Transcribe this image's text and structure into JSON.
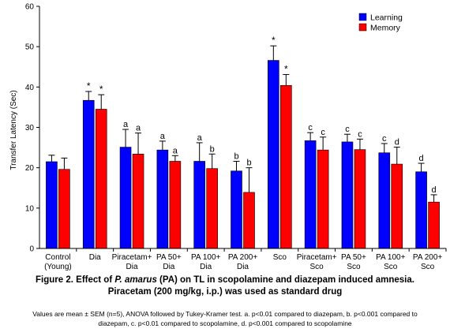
{
  "chart_data": {
    "type": "bar",
    "ylabel": "Transfer Latency (Sec)",
    "xlabel": "",
    "ylim": [
      0,
      60
    ],
    "yticks": [
      0,
      10,
      20,
      30,
      40,
      50,
      60
    ],
    "legend_position": "top-right",
    "categories": [
      [
        "Control",
        "(Young)"
      ],
      [
        "Dia"
      ],
      [
        "Piracetam+",
        "Dia"
      ],
      [
        "PA 50+",
        "Dia"
      ],
      [
        "PA 100+",
        "Dia"
      ],
      [
        "PA 200+",
        "Dia"
      ],
      [
        "Sco"
      ],
      [
        "Piracetam+",
        "Sco"
      ],
      [
        "PA 50+",
        "Sco"
      ],
      [
        "PA 100+",
        "Sco"
      ],
      [
        "PA 200+",
        "Sco"
      ]
    ],
    "series": [
      {
        "name": "Learning",
        "color": "#0000ff",
        "values": [
          21.5,
          36.7,
          25.1,
          24.4,
          21.6,
          19.2,
          46.6,
          26.7,
          26.4,
          23.7,
          19.0
        ],
        "errors": [
          1.6,
          2.2,
          4.4,
          2.2,
          4.6,
          2.4,
          3.6,
          2.0,
          1.9,
          2.3,
          2.1
        ],
        "annotations": [
          "",
          "*",
          "a",
          "a",
          "a",
          "b",
          "*",
          "c",
          "c",
          "c",
          "d"
        ]
      },
      {
        "name": "Memory",
        "color": "#ff0000",
        "values": [
          19.6,
          34.5,
          23.4,
          21.6,
          19.8,
          13.9,
          40.4,
          24.4,
          24.5,
          20.9,
          11.5
        ],
        "errors": [
          2.8,
          3.6,
          5.2,
          1.4,
          3.6,
          6.1,
          2.7,
          3.2,
          2.6,
          4.2,
          1.8
        ],
        "annotations": [
          "",
          "*",
          "a",
          "a",
          "b",
          "b",
          "*",
          "c",
          "c",
          "d",
          "d"
        ]
      }
    ]
  },
  "caption": {
    "prefix": "Figure 2. Effect of ",
    "species": "P. amarus",
    "suffix": " (PA) on TL in scopolamine and diazepam induced amnesia.",
    "line2": "Piracetam (200 mg/kg, i.p.) was used as standard drug"
  },
  "footnote": {
    "line1": "Values are mean ± SEM (n=5), ANOVA followed by Tukey-Kramer test.  a.  p<0.01 compared to diazepam, b. p<0.001 compared to",
    "line2": "diazepam, c. p<0.01 compared to scopolamine, d. p<0.001 compared to scopolamine"
  }
}
